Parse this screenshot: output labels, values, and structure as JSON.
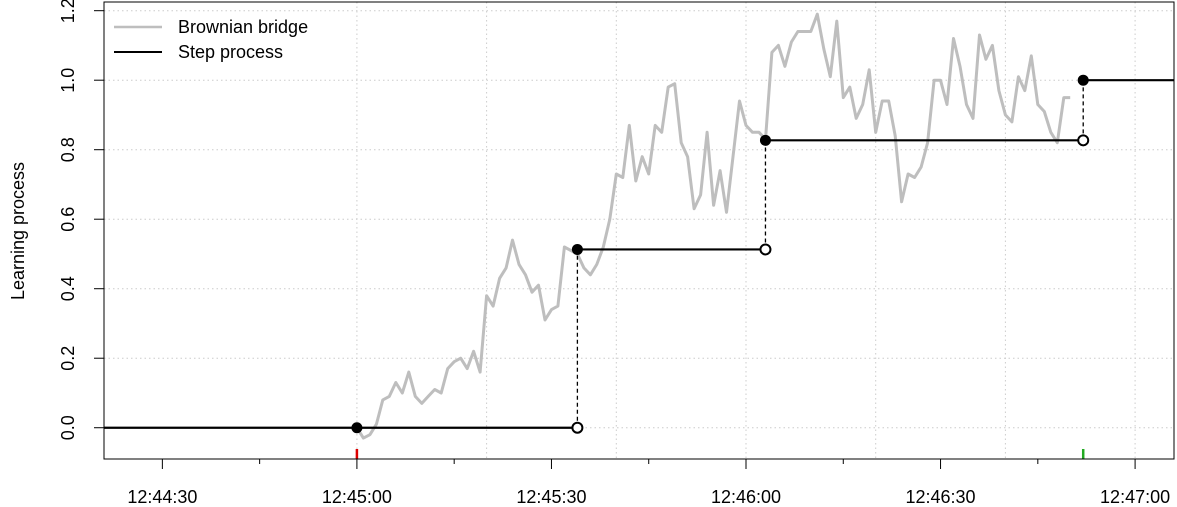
{
  "chart_data": {
    "type": "line",
    "title": "",
    "xlabel": "",
    "ylabel": "Learning process",
    "x_unit": "clock time (hh:mm:ss)",
    "xlim": [
      "12:44:21",
      "12:47:06"
    ],
    "ylim": [
      -0.09,
      1.225
    ],
    "grid": true,
    "legend_position": "top-left",
    "x_ticks": [
      "12:44:30",
      "12:45:00",
      "12:45:30",
      "12:46:00",
      "12:46:30",
      "12:47:00"
    ],
    "y_ticks": [
      "0.0",
      "0.2",
      "0.4",
      "0.6",
      "0.8",
      "1.0",
      "1.2"
    ],
    "colors": {
      "bridge": "#bebebe",
      "step": "#000000",
      "start_rug": "#dd0000",
      "end_rug": "#22aa22",
      "grid": "#cccccc"
    },
    "legend": [
      {
        "label": "Brownian bridge",
        "series": "bridge"
      },
      {
        "label": "Step process",
        "series": "step"
      }
    ],
    "series": [
      {
        "name": "Brownian bridge",
        "key": "bridge",
        "x": [
          "12:45:00",
          "12:45:01",
          "12:45:02",
          "12:45:03",
          "12:45:04",
          "12:45:05",
          "12:45:06",
          "12:45:07",
          "12:45:08",
          "12:45:09",
          "12:45:10",
          "12:45:11",
          "12:45:12",
          "12:45:13",
          "12:45:14",
          "12:45:15",
          "12:45:16",
          "12:45:17",
          "12:45:18",
          "12:45:19",
          "12:45:20",
          "12:45:21",
          "12:45:22",
          "12:45:23",
          "12:45:24",
          "12:45:25",
          "12:45:26",
          "12:45:27",
          "12:45:28",
          "12:45:29",
          "12:45:30",
          "12:45:31",
          "12:45:32",
          "12:45:33",
          "12:45:34",
          "12:45:35",
          "12:45:36",
          "12:45:37",
          "12:45:38",
          "12:45:39",
          "12:45:40",
          "12:45:41",
          "12:45:42",
          "12:45:43",
          "12:45:44",
          "12:45:45",
          "12:45:46",
          "12:45:47",
          "12:45:48",
          "12:45:49",
          "12:45:50",
          "12:45:51",
          "12:45:52",
          "12:45:53",
          "12:45:54",
          "12:45:55",
          "12:45:56",
          "12:45:57",
          "12:45:58",
          "12:45:59",
          "12:46:00",
          "12:46:01",
          "12:46:02",
          "12:46:03",
          "12:46:04",
          "12:46:05",
          "12:46:06",
          "12:46:07",
          "12:46:08",
          "12:46:09",
          "12:46:10",
          "12:46:11",
          "12:46:12",
          "12:46:13",
          "12:46:14",
          "12:46:15",
          "12:46:16",
          "12:46:17",
          "12:46:18",
          "12:46:19",
          "12:46:20",
          "12:46:21",
          "12:46:22",
          "12:46:23",
          "12:46:24",
          "12:46:25",
          "12:46:26",
          "12:46:27",
          "12:46:28",
          "12:46:29",
          "12:46:30",
          "12:46:31",
          "12:46:32",
          "12:46:33",
          "12:46:34",
          "12:46:35",
          "12:46:36",
          "12:46:37",
          "12:46:38",
          "12:46:39",
          "12:46:40",
          "12:46:41",
          "12:46:42",
          "12:46:43",
          "12:46:44",
          "12:46:45",
          "12:46:46",
          "12:46:47",
          "12:46:48",
          "12:46:49",
          "12:46:50"
        ],
        "y": [
          0.0,
          -0.03,
          -0.02,
          0.01,
          0.08,
          0.09,
          0.13,
          0.1,
          0.16,
          0.09,
          0.07,
          0.09,
          0.11,
          0.1,
          0.17,
          0.19,
          0.2,
          0.17,
          0.22,
          0.16,
          0.38,
          0.35,
          0.43,
          0.46,
          0.54,
          0.47,
          0.44,
          0.39,
          0.41,
          0.31,
          0.34,
          0.35,
          0.52,
          0.51,
          0.5,
          0.46,
          0.44,
          0.47,
          0.52,
          0.6,
          0.73,
          0.72,
          0.87,
          0.71,
          0.78,
          0.73,
          0.87,
          0.85,
          0.98,
          0.99,
          0.82,
          0.78,
          0.63,
          0.67,
          0.85,
          0.64,
          0.74,
          0.62,
          0.78,
          0.94,
          0.87,
          0.85,
          0.85,
          0.83,
          1.08,
          1.1,
          1.04,
          1.11,
          1.14,
          1.14,
          1.14,
          1.19,
          1.09,
          1.01,
          1.17,
          0.95,
          0.98,
          0.89,
          0.93,
          1.03,
          0.85,
          0.94,
          0.94,
          0.84,
          0.65,
          0.73,
          0.72,
          0.75,
          0.82,
          1.0,
          1.0,
          0.93,
          1.12,
          1.04,
          0.93,
          0.89,
          1.13,
          1.06,
          1.1,
          0.97,
          0.9,
          0.88,
          1.01,
          0.97,
          1.07,
          0.93,
          0.91,
          0.85,
          0.82,
          0.95,
          0.95
        ]
      },
      {
        "name": "Step process",
        "key": "step",
        "steps": [
          {
            "x_start": "12:44:21",
            "x_end": "12:45:00",
            "y": 0.0
          },
          {
            "x_start": "12:45:00",
            "x_end": "12:45:34",
            "y": 0.0
          },
          {
            "x_start": "12:45:34",
            "x_end": "12:46:03",
            "y": 0.513
          },
          {
            "x_start": "12:46:03",
            "x_end": "12:46:52",
            "y": 0.827
          },
          {
            "x_start": "12:46:52",
            "x_end": "12:47:06",
            "y": 1.0
          }
        ],
        "closed_points": [
          {
            "x": "12:45:00",
            "y": 0.0
          },
          {
            "x": "12:45:34",
            "y": 0.513
          },
          {
            "x": "12:46:03",
            "y": 0.827
          },
          {
            "x": "12:46:52",
            "y": 1.0
          }
        ],
        "open_points": [
          {
            "x": "12:45:34",
            "y": 0.0
          },
          {
            "x": "12:46:03",
            "y": 0.513
          },
          {
            "x": "12:46:52",
            "y": 0.827
          }
        ]
      }
    ],
    "jumps": [
      {
        "x": "12:45:34",
        "from": 0.0,
        "to": 0.513
      },
      {
        "x": "12:46:03",
        "from": 0.513,
        "to": 0.827
      },
      {
        "x": "12:46:52",
        "from": 0.827,
        "to": 1.0
      }
    ],
    "rug": [
      {
        "x": "12:45:00",
        "color_key": "start_rug"
      },
      {
        "x": "12:46:52",
        "color_key": "end_rug"
      }
    ],
    "x_minor_ticks": [
      "12:44:45",
      "12:45:15",
      "12:45:45",
      "12:46:15",
      "12:46:45"
    ],
    "x_grid": [
      "12:45:00",
      "12:45:20",
      "12:45:40",
      "12:46:00",
      "12:46:20",
      "12:46:40",
      "12:47:00"
    ]
  }
}
